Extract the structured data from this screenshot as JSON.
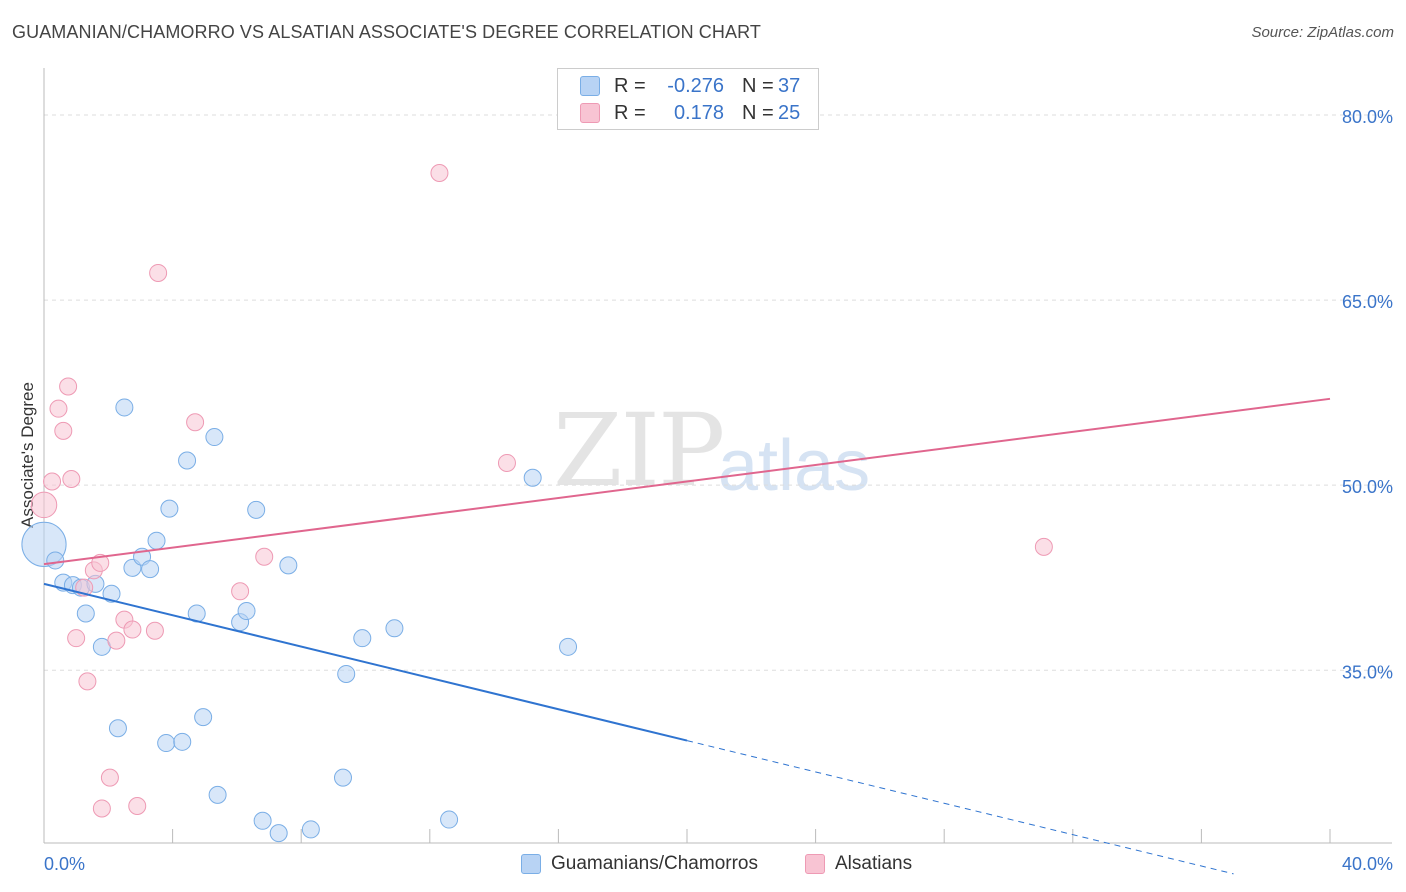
{
  "title": "GUAMANIAN/CHAMORRO VS ALSATIAN ASSOCIATE'S DEGREE CORRELATION CHART",
  "source": "Source: ZipAtlas.com",
  "watermark": {
    "zip": "ZIP",
    "atlas": "atlas"
  },
  "legend": {
    "rows": [
      {
        "r_label": "R =",
        "r_value": "-0.276",
        "n_label": "N =",
        "n_value": "37"
      },
      {
        "r_label": "R =",
        "r_value": "0.178",
        "n_label": "N =",
        "n_value": "25"
      }
    ]
  },
  "bottom_legend": {
    "series1": "Guamanians/Chamorros",
    "series2": "Alsatians"
  },
  "colors": {
    "blue_fill": "#b8d3f4",
    "blue_stroke": "#7aaee6",
    "blue_line": "#2f74d0",
    "pink_fill": "#f8c4d3",
    "pink_stroke": "#ee9ab4",
    "pink_line": "#e0668e",
    "tick_text": "#3a74c9",
    "grid": "#dddddd"
  },
  "chart_data": {
    "type": "scatter",
    "title": "GUAMANIAN/CHAMORRO VS ALSATIAN ASSOCIATE'S DEGREE CORRELATION CHART",
    "xlabel": "",
    "ylabel": "Associate's Degree",
    "xlim": [
      0,
      40
    ],
    "ylim": [
      21,
      83
    ],
    "x_tick_labels": [
      "0.0%",
      "40.0%"
    ],
    "y_ticks": [
      35,
      50,
      65,
      80
    ],
    "y_tick_labels": [
      "35.0%",
      "50.0%",
      "65.0%",
      "80.0%"
    ],
    "series": [
      {
        "name": "Guamanians/Chamorros",
        "R": -0.276,
        "N": 37,
        "points": [
          {
            "x": 0.0,
            "y": 45.2,
            "s": 2.6
          },
          {
            "x": 0.35,
            "y": 43.9,
            "s": 1
          },
          {
            "x": 0.6,
            "y": 42.1,
            "s": 1
          },
          {
            "x": 0.9,
            "y": 41.9,
            "s": 1
          },
          {
            "x": 1.15,
            "y": 41.7,
            "s": 1
          },
          {
            "x": 1.3,
            "y": 39.6,
            "s": 1
          },
          {
            "x": 1.6,
            "y": 42.0,
            "s": 1
          },
          {
            "x": 1.8,
            "y": 36.9,
            "s": 1
          },
          {
            "x": 2.1,
            "y": 41.2,
            "s": 1
          },
          {
            "x": 2.3,
            "y": 30.3,
            "s": 1
          },
          {
            "x": 2.5,
            "y": 56.3,
            "s": 1
          },
          {
            "x": 2.75,
            "y": 43.3,
            "s": 1
          },
          {
            "x": 3.05,
            "y": 44.2,
            "s": 1
          },
          {
            "x": 3.3,
            "y": 43.2,
            "s": 1
          },
          {
            "x": 3.5,
            "y": 45.5,
            "s": 1
          },
          {
            "x": 3.8,
            "y": 29.1,
            "s": 1
          },
          {
            "x": 3.9,
            "y": 48.1,
            "s": 1
          },
          {
            "x": 4.3,
            "y": 29.2,
            "s": 1
          },
          {
            "x": 4.45,
            "y": 52.0,
            "s": 1
          },
          {
            "x": 4.75,
            "y": 39.6,
            "s": 1
          },
          {
            "x": 4.95,
            "y": 31.2,
            "s": 1
          },
          {
            "x": 5.3,
            "y": 53.9,
            "s": 1
          },
          {
            "x": 5.4,
            "y": 24.9,
            "s": 1
          },
          {
            "x": 6.1,
            "y": 38.9,
            "s": 1
          },
          {
            "x": 6.3,
            "y": 39.8,
            "s": 1
          },
          {
            "x": 6.6,
            "y": 48.0,
            "s": 1
          },
          {
            "x": 6.8,
            "y": 22.8,
            "s": 1
          },
          {
            "x": 7.3,
            "y": 21.8,
            "s": 1
          },
          {
            "x": 7.6,
            "y": 43.5,
            "s": 1
          },
          {
            "x": 8.3,
            "y": 22.1,
            "s": 1
          },
          {
            "x": 9.3,
            "y": 26.3,
            "s": 1
          },
          {
            "x": 9.4,
            "y": 34.7,
            "s": 1
          },
          {
            "x": 9.9,
            "y": 37.6,
            "s": 1
          },
          {
            "x": 10.9,
            "y": 38.4,
            "s": 1
          },
          {
            "x": 12.6,
            "y": 22.9,
            "s": 1
          },
          {
            "x": 15.2,
            "y": 50.6,
            "s": 1
          },
          {
            "x": 16.3,
            "y": 36.9,
            "s": 1
          }
        ],
        "trend": {
          "x0": 0,
          "y0": 42.0,
          "x1": 20,
          "y1": 29.3,
          "dashed_to_x": 37,
          "dashed_to_y": 18.5
        }
      },
      {
        "name": "Alsatians",
        "R": 0.178,
        "N": 25,
        "points": [
          {
            "x": 0.0,
            "y": 48.4,
            "s": 1.5
          },
          {
            "x": 0.25,
            "y": 50.3,
            "s": 1
          },
          {
            "x": 0.45,
            "y": 56.2,
            "s": 1
          },
          {
            "x": 0.6,
            "y": 54.4,
            "s": 1
          },
          {
            "x": 0.75,
            "y": 58.0,
            "s": 1
          },
          {
            "x": 0.85,
            "y": 50.5,
            "s": 1
          },
          {
            "x": 1.0,
            "y": 37.6,
            "s": 1
          },
          {
            "x": 1.25,
            "y": 41.7,
            "s": 1
          },
          {
            "x": 1.35,
            "y": 34.1,
            "s": 1
          },
          {
            "x": 1.55,
            "y": 43.1,
            "s": 1
          },
          {
            "x": 1.75,
            "y": 43.7,
            "s": 1
          },
          {
            "x": 1.8,
            "y": 23.8,
            "s": 1
          },
          {
            "x": 2.05,
            "y": 26.3,
            "s": 1
          },
          {
            "x": 2.25,
            "y": 37.4,
            "s": 1
          },
          {
            "x": 2.5,
            "y": 39.1,
            "s": 1
          },
          {
            "x": 2.75,
            "y": 38.3,
            "s": 1
          },
          {
            "x": 2.9,
            "y": 24.0,
            "s": 1
          },
          {
            "x": 3.45,
            "y": 38.2,
            "s": 1
          },
          {
            "x": 3.55,
            "y": 67.2,
            "s": 1
          },
          {
            "x": 4.7,
            "y": 55.1,
            "s": 1
          },
          {
            "x": 6.1,
            "y": 41.4,
            "s": 1
          },
          {
            "x": 6.85,
            "y": 44.2,
            "s": 1
          },
          {
            "x": 12.3,
            "y": 75.3,
            "s": 1
          },
          {
            "x": 14.4,
            "y": 51.8,
            "s": 1
          },
          {
            "x": 31.1,
            "y": 45.0,
            "s": 1
          }
        ],
        "trend": {
          "x0": 0,
          "y0": 43.6,
          "x1": 40,
          "y1": 57.0
        }
      }
    ]
  }
}
